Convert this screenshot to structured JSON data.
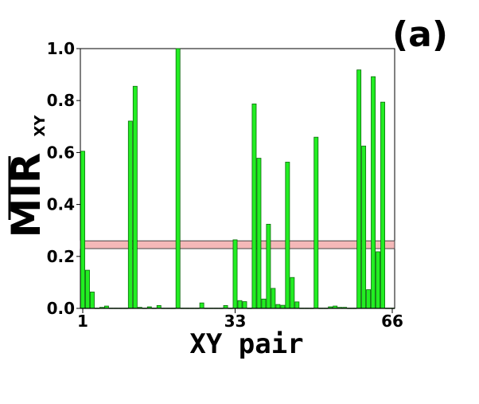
{
  "panel_label": "(a)",
  "chart_data": {
    "type": "bar",
    "xlabel": "XY pair",
    "ylabel_main": "MIR",
    "ylabel_sub": "XY",
    "ylim": [
      0,
      1
    ],
    "xlim": [
      1,
      66
    ],
    "yticks": [
      "0.0",
      "0.2",
      "0.4",
      "0.6",
      "0.8",
      "1.0"
    ],
    "ytick_values": [
      0,
      0.2,
      0.4,
      0.6,
      0.8,
      1.0
    ],
    "xticks": [
      "1",
      "33",
      "66"
    ],
    "xtick_values": [
      1,
      33,
      66
    ],
    "threshold_band": [
      0.23,
      0.26
    ],
    "bar_color": "#22ee22",
    "band_color": "#f4b8b8",
    "x": [
      1,
      2,
      3,
      4,
      5,
      6,
      7,
      8,
      9,
      10,
      11,
      12,
      13,
      14,
      15,
      16,
      17,
      18,
      19,
      20,
      21,
      22,
      23,
      24,
      25,
      26,
      27,
      28,
      29,
      30,
      31,
      32,
      33,
      34,
      35,
      36,
      37,
      38,
      39,
      40,
      41,
      42,
      43,
      44,
      45,
      46,
      47,
      48,
      49,
      50,
      51,
      52,
      53,
      54,
      55,
      56,
      57,
      58,
      59,
      60,
      61,
      62,
      63,
      64,
      65,
      66
    ],
    "values": [
      0.605,
      0.147,
      0.063,
      0.001,
      0.004,
      0.009,
      0.001,
      0.001,
      0.001,
      0.001,
      0.721,
      0.855,
      0.004,
      0.001,
      0.006,
      0.001,
      0.011,
      0.001,
      0.001,
      0.001,
      1.0,
      0.001,
      0.001,
      0.001,
      0.001,
      0.021,
      0.001,
      0.001,
      0.001,
      0.001,
      0.011,
      0.001,
      0.264,
      0.03,
      0.026,
      0.001,
      0.787,
      0.578,
      0.036,
      0.324,
      0.077,
      0.015,
      0.012,
      0.563,
      0.119,
      0.025,
      0.001,
      0.001,
      0.001,
      0.659,
      0.001,
      0.001,
      0.006,
      0.009,
      0.004,
      0.004,
      0.001,
      0.001,
      0.918,
      0.625,
      0.072,
      0.892,
      0.218,
      0.794,
      0.001,
      0.001
    ]
  }
}
